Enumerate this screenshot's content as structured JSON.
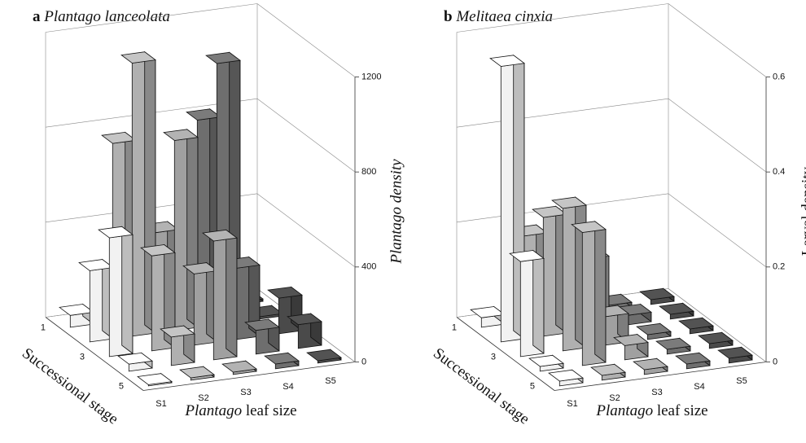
{
  "chart_data": [
    {
      "type": "bar3d",
      "label": "a",
      "title": "Plantago lanceolata",
      "y_label": "Plantago density",
      "x_label": [
        "Plantago",
        "leaf size"
      ],
      "depth_label": "Successional stage",
      "depth_categories": [
        "1",
        null,
        "3",
        null,
        "5"
      ],
      "series": [
        {
          "name": "S1",
          "color": "#f2f2f2",
          "values": [
            50,
            300,
            500,
            30,
            5
          ]
        },
        {
          "name": "S2",
          "color": "#b0b0b0",
          "values": [
            750,
            1150,
            400,
            120,
            10
          ]
        },
        {
          "name": "S3",
          "color": "#a0a0a0",
          "values": [
            350,
            800,
            300,
            500,
            10
          ]
        },
        {
          "name": "S4",
          "color": "#6e6e6e",
          "values": [
            800,
            1100,
            300,
            100,
            20
          ]
        },
        {
          "name": "S5",
          "color": "#4a4a4a",
          "values": [
            10,
            10,
            150,
            100,
            10
          ]
        }
      ],
      "ylim": [
        0,
        1200
      ],
      "yticks": [
        0,
        400,
        800,
        1200
      ]
    },
    {
      "type": "bar3d",
      "label": "b",
      "title": "Melitaea cinxia",
      "y_label": "Larval density",
      "x_label": [
        "Plantago",
        "leaf size"
      ],
      "depth_label": "Successional stage",
      "depth_categories": [
        "1",
        null,
        "3",
        null,
        "5"
      ],
      "series": [
        {
          "name": "S1",
          "color": "#f2f2f2",
          "values": [
            0.02,
            0.58,
            0.2,
            0.01,
            0.01
          ]
        },
        {
          "name": "S2",
          "color": "#b0b0b0",
          "values": [
            0.18,
            0.25,
            0.3,
            0.28,
            0.01
          ]
        },
        {
          "name": "S3",
          "color": "#a0a0a0",
          "values": [
            0.02,
            0.15,
            0.06,
            0.03,
            0.01
          ]
        },
        {
          "name": "S4",
          "color": "#6e6e6e",
          "values": [
            0.01,
            0.02,
            0.01,
            0.01,
            0.01
          ]
        },
        {
          "name": "S5",
          "color": "#4a4a4a",
          "values": [
            0.01,
            0.01,
            0.01,
            0.01,
            0.01
          ]
        }
      ],
      "ylim": [
        0,
        0.6
      ],
      "yticks": [
        0,
        0.2,
        0.4,
        0.6
      ]
    }
  ]
}
